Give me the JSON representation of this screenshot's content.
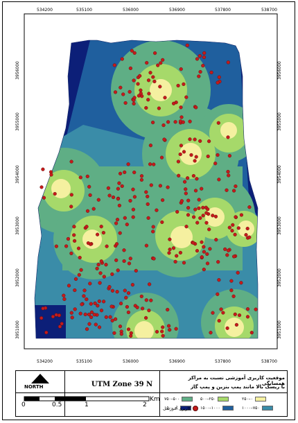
{
  "map": {
    "x_ticks": [
      "534200",
      "535100",
      "536000",
      "536900",
      "537800",
      "538700"
    ],
    "y_ticks": [
      "3951000",
      "3952000",
      "3953000",
      "3954000",
      "3955000",
      "3956000"
    ],
    "colors": {
      "zone_0_250": "#f5f0a0",
      "zone_250_500": "#a6d96a",
      "zone_500_750": "#5fae85",
      "zone_750_1000": "#3a8ca8",
      "zone_1000_1500": "#1f5f9e",
      "zone_gt_1500": "#0c1f78",
      "school_point": "#c41b1b"
    }
  },
  "legend": {
    "projection": "UTM  Zone 39 N",
    "north": "NORTH",
    "title_line1": "موقعیت کاربری آموزشی نسبت به مراکز همسایگی",
    "title_line2": "با ریسک بالا مانند پمپ بنزین و پمپ گاز",
    "items": [
      {
        "label": "۰–۲۵۰",
        "color": "#f5f0a0"
      },
      {
        "label": "۲۵۰–۵۰۰",
        "color": "#a6d96a"
      },
      {
        "label": "۵۰۰–۷۵۰",
        "color": "#5fae85"
      },
      {
        "label": "۷۵۰–۱۰۰۰",
        "color": "#3a8ca8"
      },
      {
        "label": "۱۰۰۰–۱۵۰۰",
        "color": "#1f5f9e"
      },
      {
        "label": "> ۱۵۰۰",
        "color": "#0c1f78"
      }
    ],
    "point_label": "کاربری آموزشی",
    "scale": {
      "ticks": [
        "0",
        "0.5",
        "1",
        "2"
      ],
      "unit": "Km"
    }
  }
}
